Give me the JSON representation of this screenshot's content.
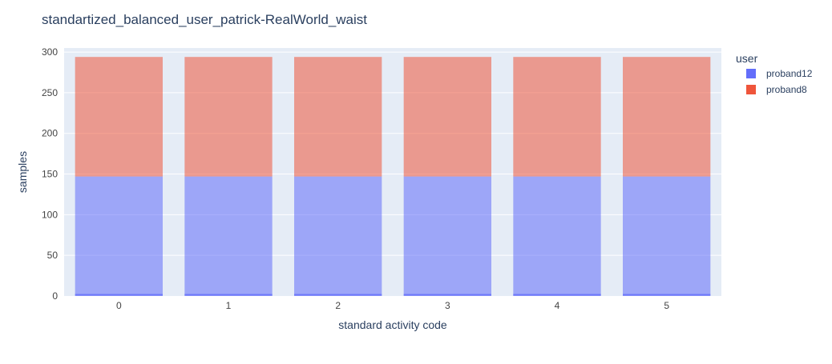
{
  "chart_data": {
    "type": "bar",
    "barmode": "stack",
    "title": "standartized_balanced_user_patrick-RealWorld_waist",
    "xlabel": "standard activity code",
    "ylabel": "samples",
    "categories": [
      "0",
      "1",
      "2",
      "3",
      "4",
      "5"
    ],
    "ylim": [
      0,
      305
    ],
    "yticks": [
      0,
      50,
      100,
      150,
      200,
      250,
      300
    ],
    "grid": true,
    "legend_title": "user",
    "legend_position": "top-right",
    "series": [
      {
        "name": "proband12",
        "color": "#636efa",
        "values": [
          147,
          147,
          147,
          147,
          147,
          147
        ]
      },
      {
        "name": "proband8",
        "color": "#ef553b",
        "values": [
          147,
          147,
          147,
          147,
          147,
          147
        ]
      }
    ],
    "colors": {
      "plot_background": "#e5ecf6",
      "text": "#2a3f5f",
      "tick_text": "#444444"
    }
  }
}
